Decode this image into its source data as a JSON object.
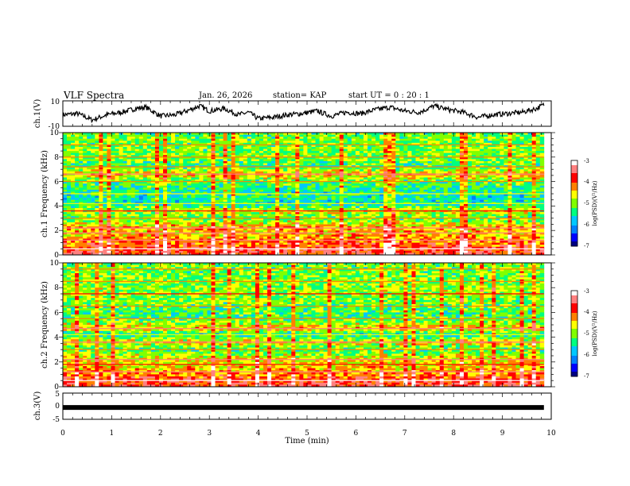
{
  "header": {
    "title": "VLF Spectra",
    "date": "Jan. 26, 2026",
    "station": "station= KAP",
    "start_ut": "start UT =   0 : 20 : 1"
  },
  "colors": {
    "waveform": "#000000",
    "background": "#ffffff",
    "colormap": [
      "#000080",
      "#0000ff",
      "#0080ff",
      "#00c8ff",
      "#00ff80",
      "#80ff00",
      "#ffff00",
      "#ff8000",
      "#ff0000",
      "#ff8080",
      "#ffffff"
    ]
  },
  "chart_data": [
    {
      "type": "line",
      "name": "ch1-waveform",
      "ylabel": "ch.1(V)",
      "ylim": [
        -10,
        10
      ],
      "yticks": [
        "10",
        "-10"
      ],
      "x_range_min": [
        0,
        9.85
      ],
      "description": "noisy waveform oscillating roughly between -6 and 9 V",
      "x": [
        0,
        0.3,
        0.6,
        0.9,
        1.2,
        1.5,
        1.7,
        2.0,
        2.3,
        2.6,
        2.8,
        3.0,
        3.3,
        3.6,
        3.8,
        4.0,
        4.3,
        4.6,
        4.9,
        5.2,
        5.5,
        5.8,
        6.1,
        6.4,
        6.7,
        7.0,
        7.3,
        7.6,
        7.9,
        8.2,
        8.5,
        8.8,
        9.1,
        9.4,
        9.7,
        9.85
      ],
      "values": [
        -1,
        0,
        -5,
        -1,
        1,
        4,
        5,
        -2,
        -1,
        3,
        6,
        2,
        4,
        -1,
        1,
        -4,
        -3,
        -1,
        0,
        2,
        -2,
        1,
        0,
        3,
        5,
        2,
        1,
        6,
        3,
        1,
        -3,
        -1,
        0,
        1,
        4,
        7
      ]
    },
    {
      "type": "heatmap",
      "name": "ch1-spectrogram",
      "ylabel": "ch.1 Frequency (kHz)",
      "ylim": [
        0,
        10
      ],
      "yticks": [
        "0",
        "2",
        "4",
        "6",
        "8",
        "10"
      ],
      "xlim": [
        0,
        10
      ],
      "data_xmax": 9.85,
      "colorbar": {
        "label": "log(PSD)(V²/Hz)",
        "range": [
          -7,
          -3
        ],
        "ticks": [
          "-3",
          "-4",
          "-5",
          "-6",
          "-7"
        ]
      },
      "band_levels_kHz": [
        0.5,
        1.2,
        1.8,
        2.2,
        3.0,
        3.6,
        4.2,
        5.0,
        6.0,
        6.6,
        7.2,
        8.0,
        9.0
      ],
      "band_log_psd": [
        -3.8,
        -4.2,
        -4.5,
        -4.3,
        -5.2,
        -4.7,
        -5.6,
        -5.5,
        -5.2,
        -4.4,
        -5.3,
        -5.0,
        -5.1
      ]
    },
    {
      "type": "heatmap",
      "name": "ch2-spectrogram",
      "ylabel": "ch.2 Frequency (kHz)",
      "ylim": [
        0,
        10
      ],
      "yticks": [
        "0",
        "2",
        "4",
        "6",
        "8",
        "10"
      ],
      "xlim": [
        0,
        10
      ],
      "data_xmax": 9.85,
      "colorbar": {
        "label": "log(PSD)(V²/Hz)",
        "range": [
          -7,
          -3
        ],
        "ticks": [
          "-3",
          "-4",
          "-5",
          "-6",
          "-7"
        ]
      },
      "band_levels_kHz": [
        0.5,
        1.2,
        1.8,
        2.2,
        3.0,
        3.6,
        4.2,
        4.7,
        5.5,
        6.5,
        7.5,
        8.5,
        9.5
      ],
      "band_log_psd": [
        -3.8,
        -4.3,
        -4.6,
        -4.5,
        -5.3,
        -4.5,
        -5.6,
        -4.4,
        -5.3,
        -5.2,
        -4.9,
        -5.0,
        -5.1
      ]
    },
    {
      "type": "line",
      "name": "ch3-waveform",
      "ylabel": "ch.3(V)",
      "ylim": [
        -5,
        5
      ],
      "yticks": [
        "5",
        "0",
        "-5"
      ],
      "xlim": [
        0,
        10
      ],
      "x_range_min": [
        0,
        9.85
      ],
      "description": "thick flat trace near -0.5 V",
      "x": [
        0,
        9.85
      ],
      "values": [
        -0.5,
        -0.5
      ]
    }
  ],
  "x_axis": {
    "label": "Time (min)",
    "ticks": [
      "0",
      "1",
      "2",
      "3",
      "4",
      "5",
      "6",
      "7",
      "8",
      "9",
      "10"
    ]
  }
}
